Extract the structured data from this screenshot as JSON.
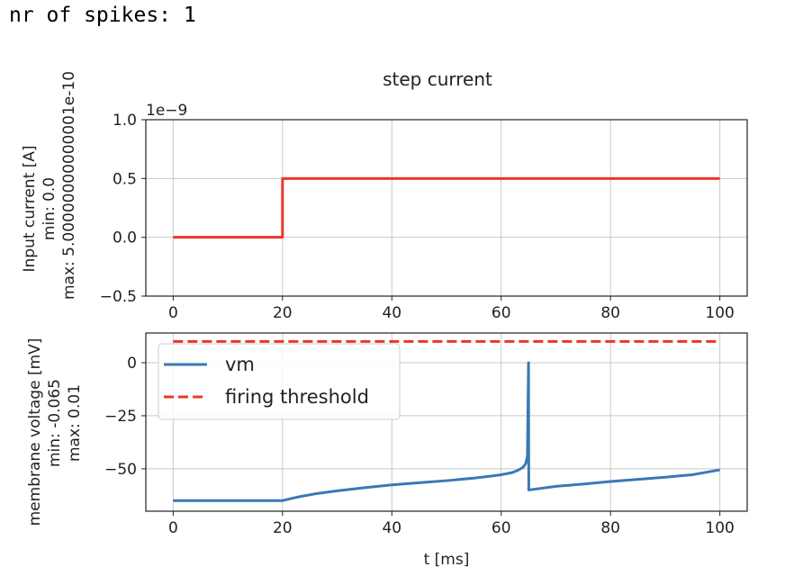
{
  "output": {
    "text": "nr of spikes: 1"
  },
  "chart_data": [
    {
      "type": "line",
      "title": "step current",
      "xlabel": "",
      "ylabel_lines": [
        "Input current [A]",
        "min: 0.0",
        "max: 5.00000000000001e-10"
      ],
      "y_offset_label": "1e−9",
      "xlim": [
        -5,
        105
      ],
      "ylim": [
        -0.5,
        1.0
      ],
      "xticks": [
        0,
        20,
        40,
        60,
        80,
        100
      ],
      "yticks": [
        -0.5,
        0.0,
        0.5,
        1.0
      ],
      "ytick_labels": [
        "−0.5",
        "0.0",
        "0.5",
        "1.0"
      ],
      "grid": true,
      "series": [
        {
          "color": "#e8392b",
          "points": [
            [
              0,
              0.0
            ],
            [
              20,
              0.0
            ],
            [
              20,
              0.5
            ],
            [
              100,
              0.5
            ]
          ]
        }
      ]
    },
    {
      "type": "line",
      "title": "",
      "xlabel": "t [ms]",
      "ylabel_lines": [
        "membrane voltage [mV]",
        "min: -0.065",
        "max: 0.01"
      ],
      "xlim": [
        -5,
        105
      ],
      "ylim": [
        -70,
        14
      ],
      "xticks": [
        0,
        20,
        40,
        60,
        80,
        100
      ],
      "yticks": [
        -50,
        -25,
        0
      ],
      "ytick_labels": [
        "−50",
        "−25",
        "0"
      ],
      "grid": true,
      "legend": {
        "placement": "upper-left"
      },
      "series": [
        {
          "name": "vm",
          "color": "#3a78b5",
          "style": "solid",
          "points": [
            [
              0,
              -65
            ],
            [
              20,
              -65
            ],
            [
              23,
              -63.2
            ],
            [
              26,
              -61.8
            ],
            [
              30,
              -60.4
            ],
            [
              35,
              -58.9
            ],
            [
              40,
              -57.6
            ],
            [
              45,
              -56.6
            ],
            [
              50,
              -55.6
            ],
            [
              55,
              -54.4
            ],
            [
              58,
              -53.5
            ],
            [
              60,
              -52.8
            ],
            [
              62,
              -51.8
            ],
            [
              63,
              -50.8
            ],
            [
              64,
              -49.3
            ],
            [
              64.5,
              -47.5
            ],
            [
              64.8,
              -44
            ],
            [
              65,
              0
            ],
            [
              65.05,
              -60
            ],
            [
              70,
              -58.3
            ],
            [
              75,
              -57.2
            ],
            [
              80,
              -56.0
            ],
            [
              85,
              -55.0
            ],
            [
              90,
              -54.0
            ],
            [
              95,
              -52.8
            ],
            [
              100,
              -50.5
            ]
          ]
        },
        {
          "name": "firing threshold",
          "color": "#e8392b",
          "style": "dashed",
          "points": [
            [
              0,
              10
            ],
            [
              100,
              10
            ]
          ]
        }
      ]
    }
  ]
}
